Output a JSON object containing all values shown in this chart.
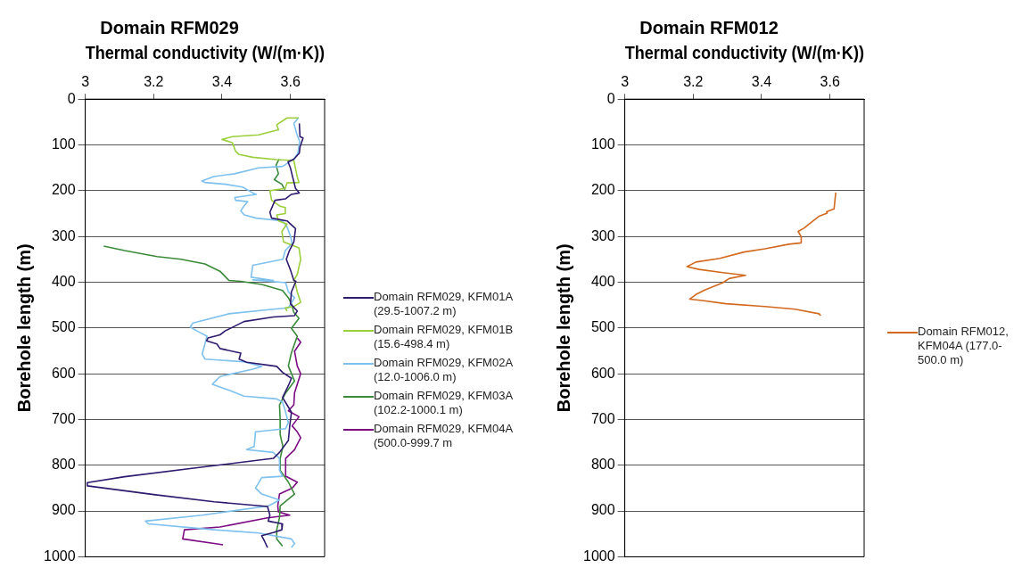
{
  "chart_data": [
    {
      "type": "line",
      "title": "Domain RFM029",
      "xlabel": "Thermal conductivity (W/(m·K))",
      "ylabel": "Borehole length (m)",
      "xlim": [
        3,
        3.7
      ],
      "xticks": [
        3,
        3.2,
        3.4,
        3.6
      ],
      "ylim": [
        1000,
        0
      ],
      "yticks": [
        0,
        100,
        200,
        300,
        400,
        500,
        600,
        700,
        800,
        900,
        1000
      ],
      "grid": "y",
      "legend": "right",
      "marker": "none",
      "line_style": "solid",
      "series": [
        {
          "name": "Domain RFM029, KFM01A (29.5-1007.2 m)",
          "color": "#2e1a6e",
          "x": [
            3.626,
            3.628,
            3.637,
            3.628,
            3.626,
            3.61,
            3.593,
            3.6,
            3.606,
            3.615,
            3.626,
            3.603,
            3.585,
            3.555,
            3.54,
            3.545,
            3.59,
            3.615,
            3.61,
            3.597,
            3.588,
            3.6,
            3.61,
            3.616,
            3.603,
            3.6,
            3.62,
            3.612,
            3.55,
            3.464,
            3.41,
            3.394,
            3.359,
            3.355,
            3.385,
            3.394,
            3.455,
            3.45,
            3.472,
            3.56,
            3.577,
            3.603,
            3.594,
            3.577,
            3.59,
            3.603,
            3.598,
            3.594,
            3.568,
            3.55,
            3.333,
            3.115,
            3.006,
            3.006,
            3.2,
            3.377,
            3.533,
            3.54,
            3.535,
            3.577,
            3.575,
            3.55,
            3.516,
            3.525,
            3.533
          ],
          "values": [
            53,
            82,
            85,
            105,
            118,
            131,
            137,
            150,
            169,
            195,
            205,
            208,
            218,
            221,
            247,
            260,
            266,
            283,
            312,
            331,
            350,
            373,
            396,
            398,
            421,
            447,
            463,
            473,
            476,
            486,
            506,
            515,
            522,
            528,
            535,
            545,
            555,
            568,
            575,
            584,
            597,
            610,
            626,
            652,
            668,
            684,
            714,
            746,
            772,
            785,
            805,
            825,
            838,
            845,
            864,
            880,
            890,
            909,
            922,
            928,
            941,
            947,
            954,
            967,
            980
          ]
        },
        {
          "name": "Domain RFM029, KFM01B (15.6-498.4 m)",
          "color": "#9bcf3c",
          "x": [
            3.624,
            3.59,
            3.56,
            3.565,
            3.507,
            3.43,
            3.4,
            3.43,
            3.44,
            3.45,
            3.49,
            3.56,
            3.61,
            3.62,
            3.625,
            3.59,
            3.585,
            3.54,
            3.545,
            3.57,
            3.585,
            3.585,
            3.56,
            3.565,
            3.59,
            3.575,
            3.58,
            3.625,
            3.63,
            3.62,
            3.61,
            3.612,
            3.62,
            3.63,
            3.61,
            3.585,
            3.59
          ],
          "values": [
            41,
            41,
            56,
            67,
            78,
            82,
            88,
            95,
            114,
            121,
            127,
            132,
            134,
            170,
            182,
            183,
            195,
            200,
            221,
            234,
            237,
            250,
            253,
            266,
            273,
            289,
            312,
            325,
            350,
            383,
            396,
            395,
            421,
            444,
            453,
            456,
            463
          ]
        },
        {
          "name": "Domain RFM029, KFM02A (12.0-1006.0 m)",
          "color": "#7ec0ee",
          "x": [
            3.624,
            3.61,
            3.62,
            3.627,
            3.622,
            3.61,
            3.577,
            3.507,
            3.437,
            3.376,
            3.341,
            3.35,
            3.41,
            3.46,
            3.49,
            3.5,
            3.437,
            3.44,
            3.475,
            3.464,
            3.455,
            3.465,
            3.5,
            3.577,
            3.59,
            3.6,
            3.605,
            3.585,
            3.578,
            3.49,
            3.485,
            3.55,
            3.49,
            3.586,
            3.594,
            3.612,
            3.594,
            3.55,
            3.42,
            3.315,
            3.307,
            3.33,
            3.356,
            3.35,
            3.342,
            3.35,
            3.464,
            3.516,
            3.49,
            3.394,
            3.372,
            3.42,
            3.464,
            3.56,
            3.577,
            3.585,
            3.594,
            3.586,
            3.498,
            3.494,
            3.472,
            3.55,
            3.568,
            3.568,
            3.577,
            3.516,
            3.498,
            3.516,
            3.568,
            3.535,
            3.342,
            3.176,
            3.185,
            3.377,
            3.507,
            3.603,
            3.612,
            3.603
          ],
          "values": [
            40,
            53,
            79,
            92,
            118,
            131,
            147,
            150,
            163,
            169,
            179,
            182,
            186,
            192,
            205,
            208,
            215,
            221,
            224,
            234,
            244,
            253,
            260,
            266,
            279,
            299,
            315,
            331,
            350,
            363,
            389,
            396,
            395,
            401,
            421,
            434,
            456,
            459,
            469,
            489,
            498,
            508,
            518,
            535,
            557,
            568,
            574,
            584,
            590,
            606,
            623,
            636,
            649,
            655,
            662,
            681,
            707,
            720,
            727,
            759,
            766,
            772,
            785,
            811,
            824,
            827,
            850,
            863,
            876,
            889,
            909,
            922,
            928,
            941,
            948,
            961,
            971,
            980
          ]
        },
        {
          "name": "Domain RFM029, KFM03A (102.2-1000.1 m)",
          "color": "#3a8a3a",
          "x": [
            3.567,
            3.558,
            3.565,
            3.553,
            3.575,
            3.584,
            null,
            3.054,
            3.115,
            3.21,
            3.28,
            3.35,
            3.394,
            3.42,
            3.455,
            3.516,
            3.577,
            3.594,
            3.603,
            3.61,
            3.625,
            3.603,
            3.62,
            3.603,
            3.594,
            3.612,
            3.586,
            3.568,
            3.57,
            3.57,
            3.578,
            3.57,
            3.57,
            3.594,
            3.612,
            3.57,
            3.568,
            3.56,
            3.56,
            3.577
          ],
          "values": [
            131,
            144,
            163,
            176,
            186,
            198,
            null,
            321,
            331,
            344,
            350,
            360,
            376,
            396,
            398,
            405,
            418,
            434,
            447,
            466,
            479,
            501,
            518,
            554,
            583,
            616,
            642,
            668,
            699,
            733,
            759,
            785,
            811,
            837,
            863,
            889,
            915,
            941,
            961,
            977
          ]
        },
        {
          "name": "Domain RFM029, KFM04A (500.0-999.7 m",
          "color": "#7b0b82",
          "x": [
            3.62,
            3.63,
            3.612,
            3.62,
            3.63,
            3.62,
            3.612,
            3.61,
            3.594,
            3.625,
            3.605,
            3.62,
            3.63,
            3.612,
            3.586,
            3.586,
            3.62,
            3.605,
            3.568,
            3.563,
            3.565,
            3.598,
            3.533,
            3.394,
            3.29,
            3.285,
            3.377,
            3.403
          ],
          "values": [
            522,
            531,
            551,
            583,
            600,
            623,
            642,
            668,
            681,
            694,
            714,
            727,
            740,
            766,
            785,
            824,
            837,
            850,
            863,
            889,
            902,
            909,
            915,
            935,
            941,
            961,
            971,
            974
          ]
        }
      ]
    },
    {
      "type": "line",
      "title": "Domain RFM012",
      "xlabel": "Thermal conductivity (W/(m·K))",
      "ylabel": "Borehole length (m)",
      "xlim": [
        3,
        3.7
      ],
      "xticks": [
        3,
        3.2,
        3.4,
        3.6
      ],
      "ylim": [
        1000,
        0
      ],
      "yticks": [
        0,
        100,
        200,
        300,
        400,
        500,
        600,
        700,
        800,
        900,
        1000
      ],
      "grid": "y",
      "legend": "right",
      "marker": "none",
      "line_style": "solid",
      "series": [
        {
          "name": "Domain RFM012, KFM04A (177.0-500.0 m)",
          "color": "#d2691e",
          "x": [
            3.617,
            3.612,
            3.59,
            3.592,
            3.568,
            3.551,
            3.524,
            3.507,
            3.516,
            3.516,
            3.48,
            3.41,
            3.349,
            3.278,
            3.208,
            3.182,
            3.217,
            3.287,
            3.353,
            3.305,
            3.287,
            3.234,
            3.208,
            3.19,
            3.226,
            3.296,
            3.41,
            3.498,
            3.568,
            3.573
          ],
          "values": [
            204,
            240,
            246,
            249,
            256,
            266,
            282,
            289,
            301,
            314,
            317,
            327,
            334,
            348,
            356,
            366,
            372,
            379,
            385,
            392,
            401,
            417,
            427,
            437,
            440,
            447,
            453,
            459,
            469,
            473
          ]
        }
      ]
    }
  ]
}
